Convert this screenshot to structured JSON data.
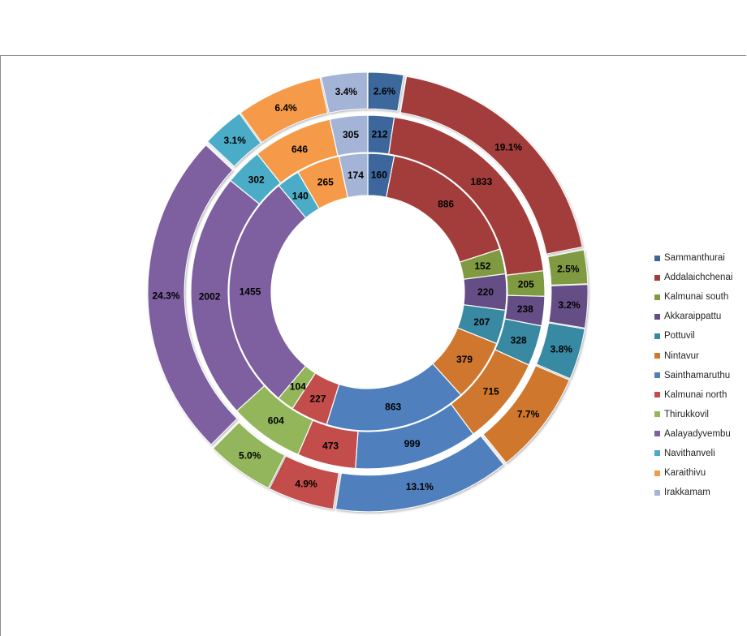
{
  "chart_data": {
    "type": "multi-ring doughnut",
    "categories": [
      "Sammanthurai",
      "Addalaichchenai",
      "Kalmunai south",
      "Akkaraippattu",
      "Pottuvil",
      "Nintavur",
      "Sainthamaruthu",
      "Kalmunai north",
      "Thirukkovil",
      "Aalayadyvembu",
      "Navithanveli",
      "Karaithivu",
      "Irakkamam"
    ],
    "colors": [
      "#3d679c",
      "#a33d3b",
      "#7f9a41",
      "#654d85",
      "#3989a3",
      "#d0772f",
      "#4f80bd",
      "#c24d4b",
      "#93b65b",
      "#7e60a0",
      "#4bacc7",
      "#f49a48",
      "#a3b4d7"
    ],
    "series": [
      {
        "name": "Inner ring",
        "values": [
          160,
          886,
          152,
          220,
          207,
          379,
          863,
          227,
          104,
          1455,
          140,
          265,
          174
        ]
      },
      {
        "name": "Middle ring",
        "values": [
          212,
          1833,
          205,
          238,
          328,
          715,
          999,
          473,
          604,
          2002,
          302,
          646,
          305
        ]
      },
      {
        "name": "Outer ring",
        "values": [
          2.6,
          19.1,
          2.5,
          3.2,
          3.8,
          7.7,
          13.1,
          4.9,
          5.0,
          24.3,
          3.1,
          6.4,
          3.4
        ],
        "labels": [
          "2.6%",
          "19.1%",
          "2.5%",
          "3.2%",
          "3.8%",
          "7.7%",
          "13.1%",
          "4.9%",
          "5.0%",
          "24.3%",
          "3.1%",
          "6.4%",
          "3.4%"
        ]
      }
    ],
    "legend_position": "right",
    "title": ""
  }
}
